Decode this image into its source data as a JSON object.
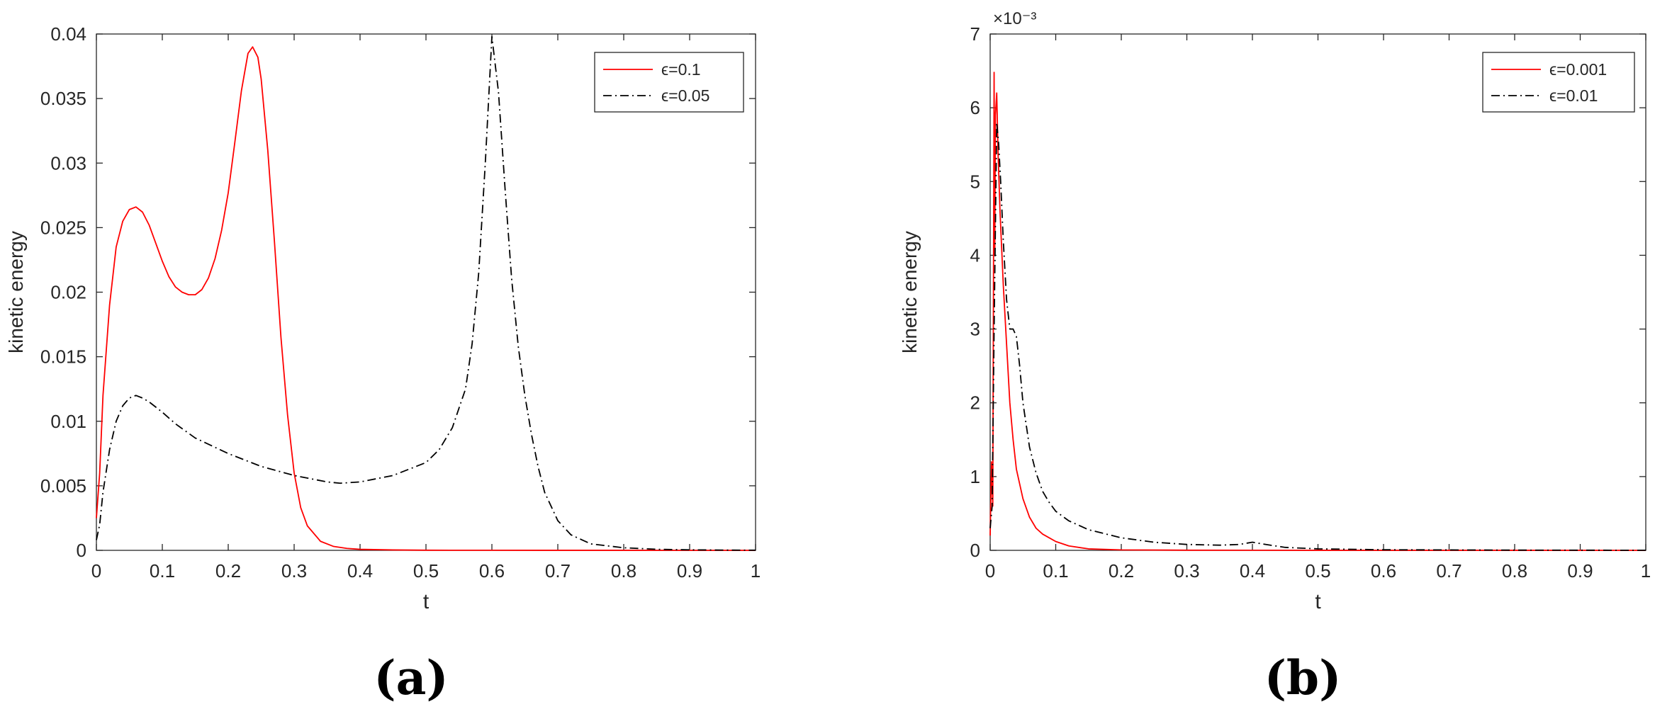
{
  "chart_data": [
    {
      "type": "line",
      "panel_label": "(a)",
      "xlabel": "t",
      "ylabel": "kinetic energy",
      "xlim": [
        0,
        1
      ],
      "ylim": [
        0,
        0.04
      ],
      "exponent_label": "",
      "xticks": [
        "0",
        "0.1",
        "0.2",
        "0.3",
        "0.4",
        "0.5",
        "0.6",
        "0.7",
        "0.8",
        "0.9",
        "1"
      ],
      "yticks": [
        "0",
        "0.005",
        "0.01",
        "0.015",
        "0.02",
        "0.025",
        "0.03",
        "0.035",
        "0.04"
      ],
      "legend_position": "top-right",
      "series": [
        {
          "name": "ϵ=0.1",
          "color": "#ff0000",
          "style": "solid",
          "x": [
            0,
            0.005,
            0.01,
            0.02,
            0.03,
            0.04,
            0.05,
            0.06,
            0.07,
            0.08,
            0.09,
            0.1,
            0.11,
            0.12,
            0.13,
            0.14,
            0.15,
            0.16,
            0.17,
            0.18,
            0.19,
            0.2,
            0.21,
            0.22,
            0.23,
            0.237,
            0.245,
            0.25,
            0.26,
            0.27,
            0.28,
            0.29,
            0.3,
            0.31,
            0.32,
            0.34,
            0.36,
            0.38,
            0.4,
            0.45,
            0.5,
            0.6,
            0.8,
            1.0
          ],
          "y": [
            0.0025,
            0.006,
            0.012,
            0.019,
            0.0235,
            0.0255,
            0.0264,
            0.0266,
            0.0262,
            0.0252,
            0.0238,
            0.0224,
            0.0212,
            0.0204,
            0.02,
            0.0198,
            0.0198,
            0.0202,
            0.0211,
            0.0226,
            0.0248,
            0.0277,
            0.0316,
            0.0356,
            0.0385,
            0.039,
            0.0382,
            0.0365,
            0.031,
            0.024,
            0.0165,
            0.0105,
            0.006,
            0.0033,
            0.0019,
            0.0007,
            0.0003,
            0.00015,
            8e-05,
            3e-05,
            1e-05,
            5e-06,
            2e-06,
            1e-06
          ]
        },
        {
          "name": "ϵ=0.05",
          "color": "#000000",
          "style": "dashdot",
          "x": [
            0,
            0.005,
            0.01,
            0.02,
            0.03,
            0.04,
            0.05,
            0.06,
            0.07,
            0.08,
            0.1,
            0.12,
            0.15,
            0.2,
            0.25,
            0.3,
            0.35,
            0.37,
            0.4,
            0.45,
            0.5,
            0.52,
            0.54,
            0.56,
            0.57,
            0.58,
            0.59,
            0.6,
            0.61,
            0.62,
            0.63,
            0.64,
            0.65,
            0.66,
            0.67,
            0.68,
            0.7,
            0.72,
            0.75,
            0.8,
            0.85,
            0.9,
            0.95,
            1.0
          ],
          "y": [
            0.0008,
            0.002,
            0.0045,
            0.0078,
            0.01,
            0.0112,
            0.0118,
            0.012,
            0.0118,
            0.0115,
            0.0107,
            0.0098,
            0.0087,
            0.0075,
            0.0065,
            0.0058,
            0.0053,
            0.0052,
            0.0053,
            0.0058,
            0.0068,
            0.0078,
            0.0095,
            0.0125,
            0.016,
            0.0215,
            0.03,
            0.0398,
            0.0355,
            0.028,
            0.021,
            0.0158,
            0.012,
            0.009,
            0.0065,
            0.0045,
            0.0023,
            0.0012,
            0.0005,
            0.0002,
            8e-05,
            4e-05,
            2e-05,
            1e-05
          ]
        }
      ]
    },
    {
      "type": "line",
      "panel_label": "(b)",
      "xlabel": "t",
      "ylabel": "kinetic energy",
      "xlim": [
        0,
        1
      ],
      "ylim": [
        0,
        7
      ],
      "exponent_label": "×10⁻³",
      "xticks": [
        "0",
        "0.1",
        "0.2",
        "0.3",
        "0.4",
        "0.5",
        "0.6",
        "0.7",
        "0.8",
        "0.9",
        "1"
      ],
      "yticks": [
        "0",
        "1",
        "2",
        "3",
        "4",
        "5",
        "6",
        "7"
      ],
      "legend_position": "top-right",
      "series": [
        {
          "name": "ϵ=0.001",
          "color": "#ff0000",
          "style": "solid",
          "x": [
            0,
            0.002,
            0.004,
            0.005,
            0.006,
            0.007,
            0.008,
            0.01,
            0.012,
            0.015,
            0.02,
            0.025,
            0.03,
            0.035,
            0.04,
            0.05,
            0.06,
            0.07,
            0.08,
            0.1,
            0.12,
            0.15,
            0.2,
            0.3,
            0.5,
            1.0
          ],
          "y": [
            0.2,
            1.2,
            0.6,
            3.5,
            6.48,
            4.0,
            5.9,
            6.2,
            5.4,
            4.6,
            3.6,
            2.8,
            2.0,
            1.5,
            1.1,
            0.7,
            0.45,
            0.3,
            0.22,
            0.12,
            0.06,
            0.02,
            0.006,
            0.002,
            0.0008,
            0.0003
          ]
        },
        {
          "name": "ϵ=0.01",
          "color": "#000000",
          "style": "dashdot",
          "x": [
            0,
            0.003,
            0.006,
            0.01,
            0.013,
            0.016,
            0.02,
            0.025,
            0.03,
            0.035,
            0.04,
            0.045,
            0.05,
            0.06,
            0.07,
            0.08,
            0.09,
            0.1,
            0.12,
            0.15,
            0.2,
            0.25,
            0.3,
            0.35,
            0.38,
            0.4,
            0.42,
            0.45,
            0.5,
            0.6,
            0.8,
            1.0
          ],
          "y": [
            0.3,
            0.6,
            3.0,
            5.8,
            5.5,
            5.0,
            4.2,
            3.4,
            3.0,
            3.0,
            2.9,
            2.5,
            2.0,
            1.4,
            1.05,
            0.8,
            0.65,
            0.53,
            0.4,
            0.28,
            0.17,
            0.11,
            0.08,
            0.07,
            0.08,
            0.11,
            0.08,
            0.04,
            0.02,
            0.008,
            0.003,
            0.001
          ]
        }
      ]
    }
  ]
}
